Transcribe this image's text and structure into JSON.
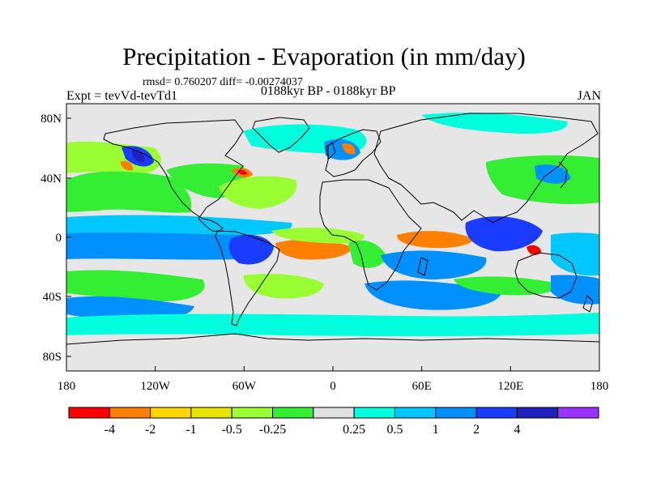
{
  "title": "Precipitation - Evaporation (in mm/day)",
  "stats": "rmsd= 0.760207 diff= -0.00274037",
  "experiment": "Expt = tevVd-tevTd1",
  "period": "0188kyr BP - 0188kyr BP",
  "month": "JAN",
  "lon_ticks": [
    "180",
    "120W",
    "60W",
    "0",
    "60E",
    "120E",
    "180"
  ],
  "lat_ticks": [
    "80N",
    "40N",
    "0",
    "40S",
    "80S"
  ],
  "colorbar": {
    "colors": [
      "#ff0000",
      "#ff8000",
      "#ffd700",
      "#e6e600",
      "#99ff33",
      "#33ee33",
      "#e0e0e0",
      "#00ffdd",
      "#00c8ff",
      "#0090ff",
      "#1a3cff",
      "#2020c0",
      "#9933ff"
    ],
    "labels": [
      "-4",
      "-2",
      "-1",
      "-0.5",
      "-0.25",
      "0.25",
      "0.5",
      "1",
      "2",
      "4"
    ]
  },
  "colors": {
    "land_background": "#e6e6e6",
    "coastline": "#000000"
  }
}
